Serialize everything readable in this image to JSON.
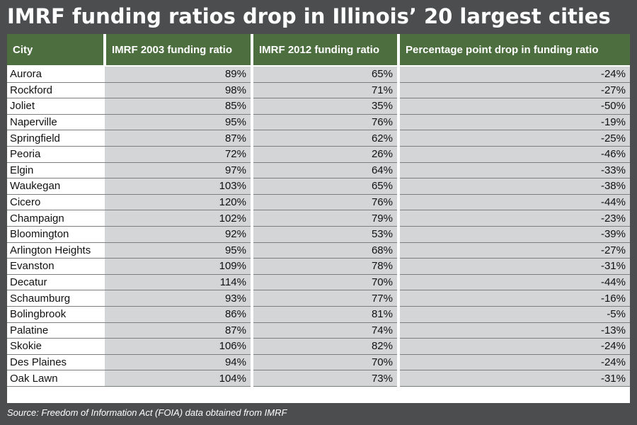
{
  "title": "IMRF funding ratios drop in Illinois’ 20 largest cities",
  "source": "Source: Freedom of Information Act (FOIA) data obtained from IMRF",
  "colors": {
    "background": "#4b4d4e",
    "header": "#4d6f3f",
    "cell": "#d4d5d6"
  },
  "chart_data": {
    "type": "table",
    "columns": [
      "City",
      "IMRF 2003 funding ratio",
      "IMRF 2012 funding ratio",
      "Percentage point drop in funding ratio"
    ],
    "rows": [
      [
        "Aurora",
        "89%",
        "65%",
        "-24%"
      ],
      [
        "Rockford",
        "98%",
        "71%",
        "-27%"
      ],
      [
        "Joliet",
        "85%",
        "35%",
        "-50%"
      ],
      [
        "Naperville",
        "95%",
        "76%",
        "-19%"
      ],
      [
        "Springfield",
        "87%",
        "62%",
        "-25%"
      ],
      [
        "Peoria",
        "72%",
        "26%",
        "-46%"
      ],
      [
        "Elgin",
        "97%",
        "64%",
        "-33%"
      ],
      [
        "Waukegan",
        "103%",
        "65%",
        "-38%"
      ],
      [
        "Cicero",
        "120%",
        "76%",
        "-44%"
      ],
      [
        "Champaign",
        "102%",
        "79%",
        "-23%"
      ],
      [
        "Bloomington",
        "92%",
        "53%",
        "-39%"
      ],
      [
        "Arlington Heights",
        "95%",
        "68%",
        "-27%"
      ],
      [
        "Evanston",
        "109%",
        "78%",
        "-31%"
      ],
      [
        "Decatur",
        "114%",
        "70%",
        "-44%"
      ],
      [
        "Schaumburg",
        "93%",
        "77%",
        "-16%"
      ],
      [
        "Bolingbrook",
        "86%",
        "81%",
        "-5%"
      ],
      [
        "Palatine",
        "87%",
        "74%",
        "-13%"
      ],
      [
        "Skokie",
        "106%",
        "82%",
        "-24%"
      ],
      [
        "Des Plaines",
        "94%",
        "70%",
        "-24%"
      ],
      [
        "Oak Lawn",
        "104%",
        "73%",
        "-31%"
      ]
    ]
  }
}
